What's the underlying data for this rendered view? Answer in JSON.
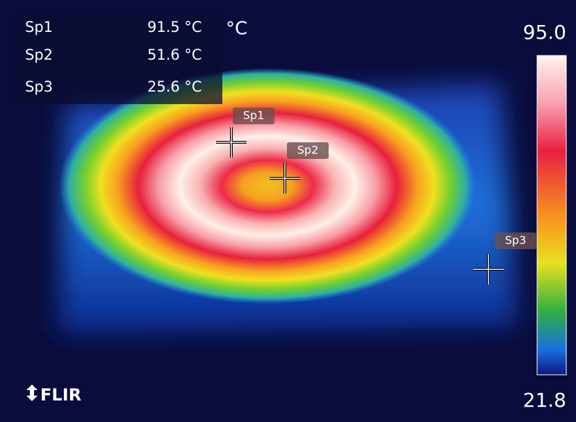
{
  "spots": [
    {
      "name": "Sp1",
      "value": "91.5 °C"
    },
    {
      "name": "Sp2",
      "value": "51.6 °C"
    },
    {
      "name": "Sp3",
      "value": "25.6 °C"
    }
  ],
  "unit": "°C",
  "scale": {
    "max": "95.0",
    "min": "21.8"
  },
  "brand": "FLIR"
}
